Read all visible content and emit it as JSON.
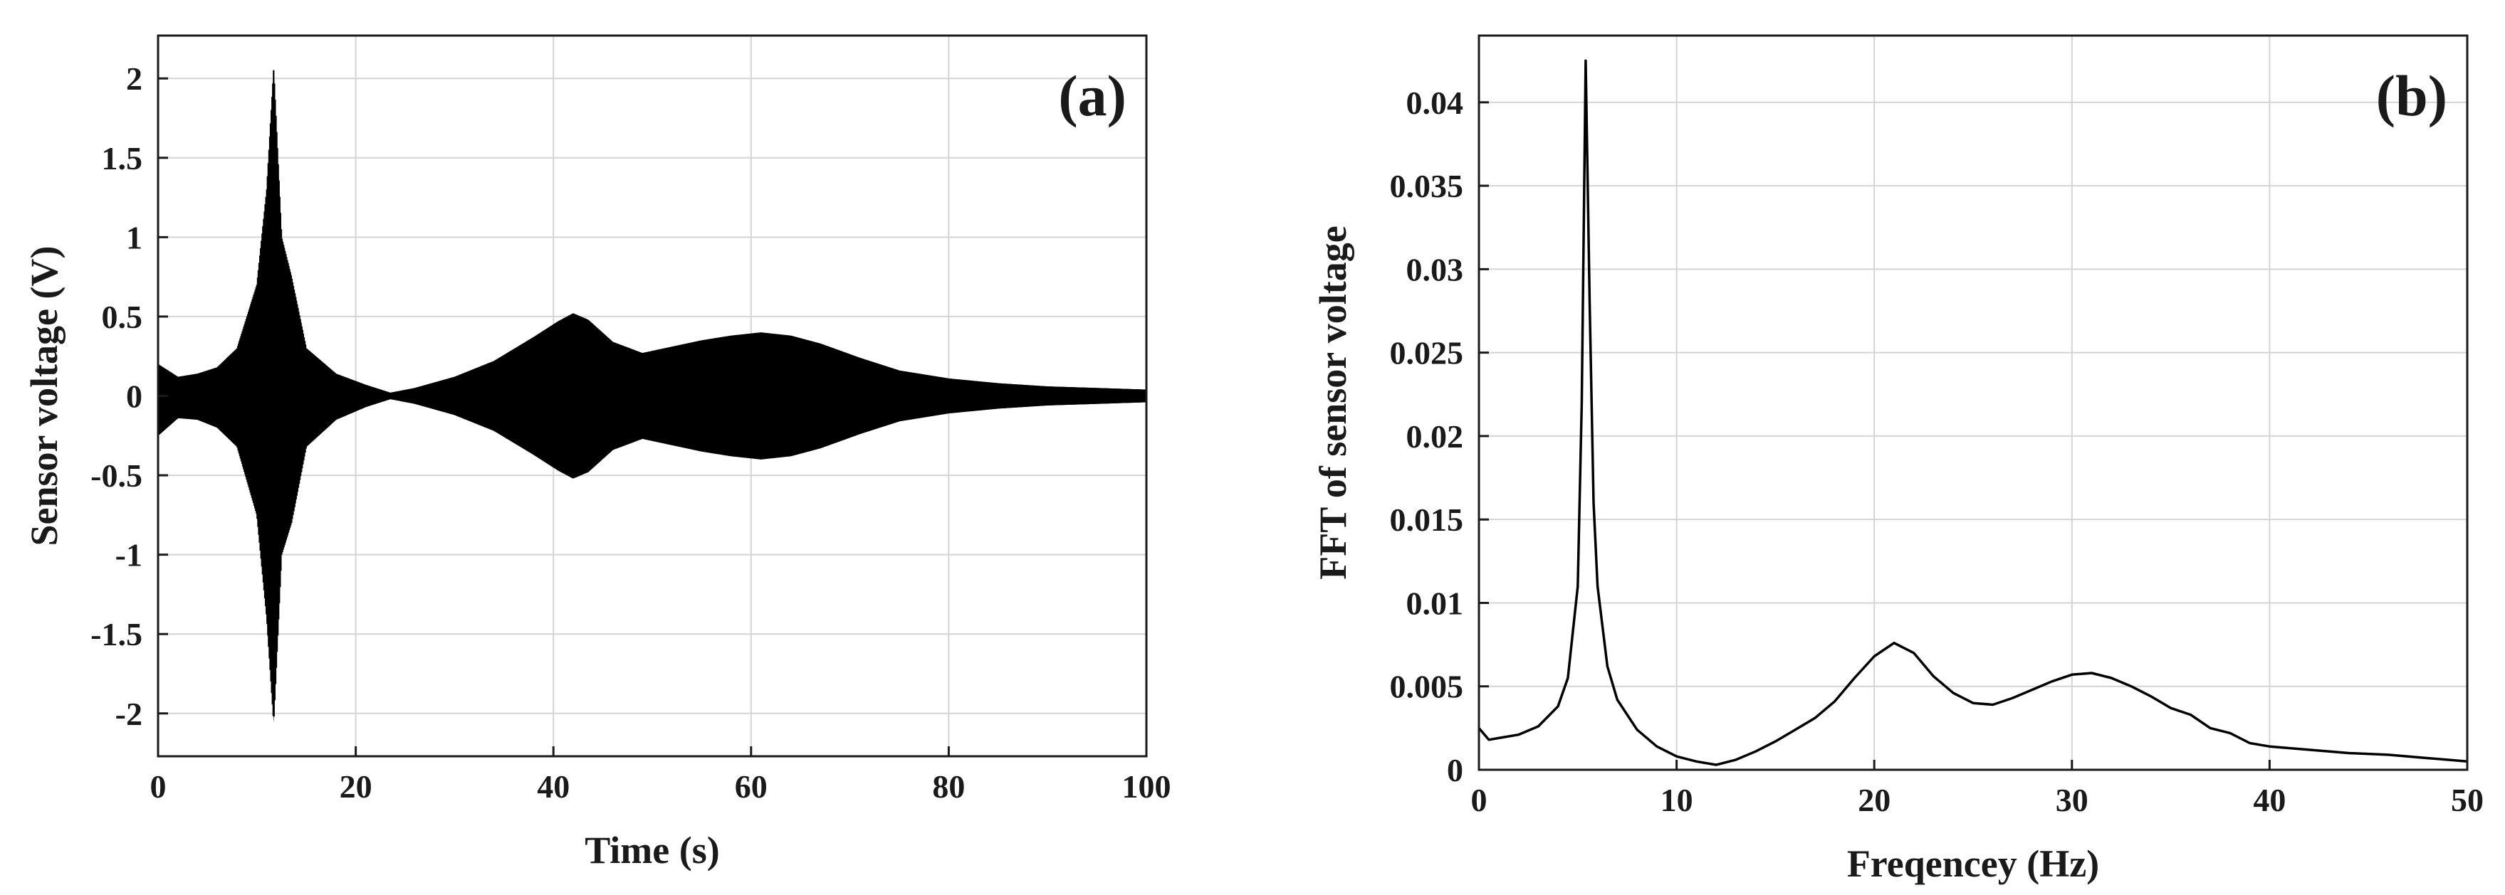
{
  "chart_data": [
    {
      "type": "line",
      "panel_label": "(a)",
      "xlabel": "Time (s)",
      "ylabel": "Sensor voltage (V)",
      "xlim": [
        0,
        100
      ],
      "ylim": [
        -2.27,
        2.27
      ],
      "xticks": [
        0,
        20,
        40,
        60,
        80,
        100
      ],
      "xtick_labels": [
        "0",
        "20",
        "40",
        "60",
        "80",
        "100"
      ],
      "yticks": [
        2,
        1.5,
        1,
        0.5,
        0,
        -0.5,
        -1,
        -1.5,
        -2
      ],
      "ytick_labels": [
        "2",
        "1.5",
        "1",
        "0.5",
        "0",
        "-0.5",
        "-1",
        "-1.5",
        "-2"
      ],
      "grid": true,
      "line_color": "#000000",
      "series": [
        {
          "description": "oscillating signal, amplitude envelope over time",
          "x": [
            0,
            2,
            4,
            6,
            8,
            10,
            11,
            11.7,
            12.5,
            13.5,
            15,
            18,
            21,
            23.5,
            26,
            30,
            34,
            38,
            40.5,
            42,
            43.5,
            46,
            49,
            52,
            55,
            58,
            61,
            64,
            67,
            71,
            75,
            80,
            85,
            90,
            95,
            100
          ],
          "envelope_upper": [
            0.2,
            0.12,
            0.14,
            0.18,
            0.3,
            0.7,
            1.3,
            2.06,
            1.0,
            0.75,
            0.3,
            0.14,
            0.07,
            0.02,
            0.05,
            0.12,
            0.22,
            0.37,
            0.47,
            0.52,
            0.48,
            0.34,
            0.27,
            0.31,
            0.35,
            0.38,
            0.4,
            0.38,
            0.33,
            0.24,
            0.16,
            0.11,
            0.08,
            0.06,
            0.05,
            0.04
          ],
          "envelope_lower": [
            -0.25,
            -0.14,
            -0.15,
            -0.2,
            -0.32,
            -0.75,
            -1.4,
            -2.06,
            -1.0,
            -0.8,
            -0.32,
            -0.15,
            -0.07,
            -0.02,
            -0.05,
            -0.12,
            -0.22,
            -0.37,
            -0.47,
            -0.52,
            -0.48,
            -0.34,
            -0.27,
            -0.31,
            -0.35,
            -0.38,
            -0.4,
            -0.38,
            -0.33,
            -0.24,
            -0.16,
            -0.11,
            -0.08,
            -0.06,
            -0.05,
            -0.04
          ]
        }
      ]
    },
    {
      "type": "line",
      "panel_label": "(b)",
      "xlabel": "Freqencey (Hz)",
      "ylabel": "FFT of sensor voltage",
      "xlim": [
        0,
        50
      ],
      "ylim": [
        0,
        0.044
      ],
      "xticks": [
        0,
        10,
        20,
        30,
        40,
        50
      ],
      "xtick_labels": [
        "0",
        "10",
        "20",
        "30",
        "40",
        "50"
      ],
      "yticks": [
        0.04,
        0.035,
        0.03,
        0.025,
        0.02,
        0.015,
        0.01,
        0.005,
        0
      ],
      "ytick_labels": [
        "0.04",
        "0.035",
        "0.03",
        "0.025",
        "0.02",
        "0.015",
        "0.01",
        "0.005",
        "0"
      ],
      "grid": true,
      "line_color": "#000000",
      "series": [
        {
          "x": [
            0,
            0.5,
            1,
            2,
            3,
            4,
            4.5,
            5,
            5.2,
            5.4,
            5.6,
            5.8,
            6,
            6.5,
            7,
            8,
            9,
            10,
            11,
            12,
            13,
            14,
            15,
            16,
            17,
            18,
            19,
            20,
            21,
            22,
            23,
            24,
            25,
            26,
            27,
            28,
            29,
            30,
            31,
            32,
            33,
            34,
            35,
            36,
            37,
            38,
            39,
            40,
            42,
            44,
            46,
            48,
            49,
            50
          ],
          "y": [
            0.0025,
            0.0018,
            0.0019,
            0.0021,
            0.0026,
            0.0038,
            0.0055,
            0.011,
            0.022,
            0.0425,
            0.028,
            0.016,
            0.011,
            0.0062,
            0.0042,
            0.0024,
            0.0014,
            0.0008,
            0.0005,
            0.0003,
            0.0006,
            0.0011,
            0.0017,
            0.0024,
            0.0031,
            0.0041,
            0.0055,
            0.0068,
            0.0076,
            0.007,
            0.0056,
            0.0046,
            0.004,
            0.0039,
            0.0043,
            0.0048,
            0.0053,
            0.0057,
            0.0058,
            0.0055,
            0.005,
            0.0044,
            0.0037,
            0.0033,
            0.0025,
            0.0022,
            0.0016,
            0.0014,
            0.0012,
            0.001,
            0.0009,
            0.0007,
            0.0006,
            0.0005
          ]
        }
      ]
    }
  ]
}
